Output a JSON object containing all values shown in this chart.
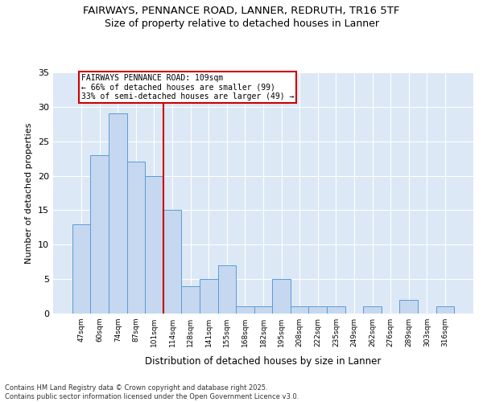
{
  "title1": "FAIRWAYS, PENNANCE ROAD, LANNER, REDRUTH, TR16 5TF",
  "title2": "Size of property relative to detached houses in Lanner",
  "xlabel": "Distribution of detached houses by size in Lanner",
  "ylabel": "Number of detached properties",
  "categories": [
    "47sqm",
    "60sqm",
    "74sqm",
    "87sqm",
    "101sqm",
    "114sqm",
    "128sqm",
    "141sqm",
    "155sqm",
    "168sqm",
    "182sqm",
    "195sqm",
    "208sqm",
    "222sqm",
    "235sqm",
    "249sqm",
    "262sqm",
    "276sqm",
    "289sqm",
    "303sqm",
    "316sqm"
  ],
  "values": [
    13,
    23,
    29,
    22,
    20,
    15,
    4,
    5,
    7,
    1,
    1,
    5,
    1,
    1,
    1,
    0,
    1,
    0,
    2,
    0,
    1
  ],
  "bar_color": "#c5d8f0",
  "bar_edge_color": "#5b9bd5",
  "ref_line_x": 4.5,
  "ref_line_color": "#cc0000",
  "annotation_text": "FAIRWAYS PENNANCE ROAD: 109sqm\n← 66% of detached houses are smaller (99)\n33% of semi-detached houses are larger (49) →",
  "annotation_box_color": "#ffffff",
  "annotation_box_edge": "#cc0000",
  "background_color": "#dce8f5",
  "footer": "Contains HM Land Registry data © Crown copyright and database right 2025.\nContains public sector information licensed under the Open Government Licence v3.0.",
  "ylim": [
    0,
    35
  ],
  "yticks": [
    0,
    5,
    10,
    15,
    20,
    25,
    30,
    35
  ]
}
